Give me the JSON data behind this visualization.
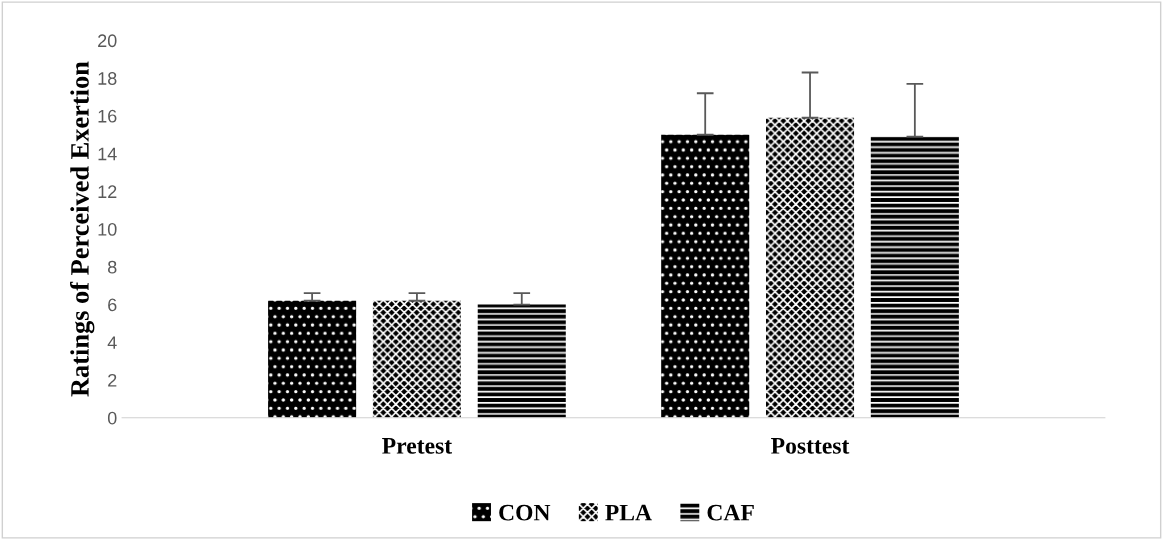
{
  "chart_data": {
    "type": "bar",
    "ylabel": "Ratings of Perceived Exertion",
    "categories": [
      "Pretest",
      "Posttest"
    ],
    "series": [
      {
        "name": "CON",
        "color": "#000000",
        "values": [
          6.2,
          15.0
        ],
        "errors": [
          [
            6.2,
            6.6
          ],
          [
            15.0,
            17.2
          ]
        ]
      },
      {
        "name": "PLA",
        "color": "#000000",
        "values": [
          6.2,
          15.9
        ],
        "errors": [
          [
            6.2,
            6.6
          ],
          [
            15.9,
            18.3
          ]
        ]
      },
      {
        "name": "CAF",
        "color": "#000000",
        "values": [
          6.0,
          14.9
        ],
        "errors": [
          [
            6.0,
            6.6
          ],
          [
            14.9,
            17.7
          ]
        ]
      }
    ],
    "ylim": [
      0,
      20
    ],
    "yticks": [
      0,
      2,
      4,
      6,
      8,
      10,
      12,
      14,
      16,
      18,
      20
    ],
    "grid": false,
    "legend": "bottom"
  }
}
